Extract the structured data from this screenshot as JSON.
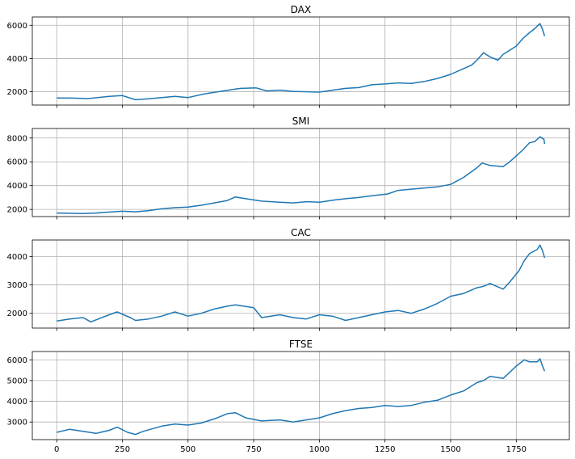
{
  "chart_data": [
    {
      "type": "line",
      "title": "DAX",
      "xlim": [
        -93,
        1952
      ],
      "ylim": [
        1200,
        6500
      ],
      "grid": true,
      "yticks": [
        2000,
        4000,
        6000
      ],
      "xticks": [
        0,
        250,
        500,
        750,
        1000,
        1250,
        1500,
        1750
      ],
      "show_xtick_labels": false,
      "color": "#1f77b4",
      "x": [
        0,
        60,
        120,
        200,
        250,
        300,
        350,
        400,
        450,
        500,
        560,
        620,
        680,
        700,
        760,
        800,
        850,
        900,
        1000,
        1060,
        1100,
        1150,
        1200,
        1250,
        1300,
        1350,
        1400,
        1450,
        1500,
        1550,
        1580,
        1600,
        1625,
        1650,
        1680,
        1700,
        1725,
        1750,
        1775,
        1800,
        1820,
        1840,
        1850,
        1858
      ],
      "y": [
        1630,
        1620,
        1590,
        1720,
        1770,
        1520,
        1580,
        1650,
        1720,
        1650,
        1860,
        2010,
        2160,
        2200,
        2230,
        2050,
        2100,
        2020,
        1980,
        2120,
        2200,
        2250,
        2420,
        2470,
        2530,
        2500,
        2620,
        2800,
        3050,
        3400,
        3600,
        3900,
        4350,
        4100,
        3900,
        4250,
        4500,
        4750,
        5200,
        5550,
        5800,
        6100,
        5750,
        5350
      ]
    },
    {
      "type": "line",
      "title": "SMI",
      "xlim": [
        -93,
        1952
      ],
      "ylim": [
        1400,
        8800
      ],
      "grid": true,
      "yticks": [
        2000,
        4000,
        6000,
        8000
      ],
      "xticks": [
        0,
        250,
        500,
        750,
        1000,
        1250,
        1500,
        1750
      ],
      "show_xtick_labels": false,
      "color": "#1f77b4",
      "x": [
        0,
        100,
        150,
        200,
        250,
        300,
        350,
        400,
        450,
        500,
        550,
        600,
        650,
        680,
        720,
        780,
        850,
        900,
        950,
        1000,
        1060,
        1100,
        1150,
        1200,
        1260,
        1300,
        1350,
        1400,
        1450,
        1500,
        1550,
        1600,
        1620,
        1650,
        1700,
        1725,
        1750,
        1775,
        1800,
        1820,
        1840,
        1855,
        1858
      ],
      "y": [
        1700,
        1650,
        1700,
        1780,
        1850,
        1800,
        1900,
        2050,
        2150,
        2200,
        2350,
        2550,
        2750,
        3050,
        2900,
        2700,
        2600,
        2550,
        2650,
        2600,
        2800,
        2900,
        3000,
        3150,
        3300,
        3600,
        3700,
        3800,
        3900,
        4100,
        4700,
        5500,
        5900,
        5700,
        5600,
        6000,
        6500,
        7000,
        7600,
        7700,
        8100,
        7900,
        7500
      ]
    },
    {
      "type": "line",
      "title": "CAC",
      "xlim": [
        -93,
        1952
      ],
      "ylim": [
        1480,
        4580
      ],
      "grid": true,
      "yticks": [
        2000,
        3000,
        4000
      ],
      "xticks": [
        0,
        250,
        500,
        750,
        1000,
        1250,
        1500,
        1750
      ],
      "show_xtick_labels": false,
      "color": "#1f77b4",
      "x": [
        0,
        50,
        100,
        130,
        200,
        230,
        280,
        300,
        350,
        400,
        450,
        500,
        550,
        600,
        650,
        680,
        750,
        780,
        850,
        900,
        950,
        1000,
        1050,
        1100,
        1150,
        1200,
        1250,
        1300,
        1350,
        1400,
        1450,
        1500,
        1550,
        1600,
        1625,
        1650,
        1700,
        1725,
        1760,
        1780,
        1800,
        1830,
        1840,
        1850,
        1858
      ],
      "y": [
        1730,
        1800,
        1850,
        1700,
        1950,
        2050,
        1850,
        1750,
        1800,
        1900,
        2050,
        1900,
        2000,
        2150,
        2250,
        2300,
        2200,
        1850,
        1950,
        1850,
        1800,
        1950,
        1900,
        1750,
        1850,
        1950,
        2050,
        2100,
        2000,
        2150,
        2350,
        2600,
        2700,
        2900,
        2950,
        3050,
        2850,
        3100,
        3500,
        3850,
        4100,
        4250,
        4400,
        4200,
        3950
      ]
    },
    {
      "type": "line",
      "title": "FTSE",
      "xlim": [
        -93,
        1952
      ],
      "ylim": [
        2150,
        6400
      ],
      "grid": true,
      "yticks": [
        3000,
        4000,
        5000,
        6000
      ],
      "xticks": [
        0,
        250,
        500,
        750,
        1000,
        1250,
        1500,
        1750
      ],
      "xtick_labels": [
        "0",
        "250",
        "500",
        "750",
        "1000",
        "1250",
        "1500",
        "1750"
      ],
      "show_xtick_labels": true,
      "color": "#1f77b4",
      "x": [
        0,
        50,
        100,
        150,
        200,
        230,
        270,
        300,
        330,
        400,
        450,
        500,
        550,
        600,
        650,
        680,
        720,
        780,
        850,
        900,
        950,
        1000,
        1050,
        1100,
        1150,
        1200,
        1250,
        1300,
        1350,
        1400,
        1450,
        1500,
        1550,
        1600,
        1625,
        1650,
        1700,
        1750,
        1780,
        1800,
        1830,
        1840,
        1850,
        1858
      ],
      "y": [
        2500,
        2650,
        2550,
        2450,
        2600,
        2750,
        2500,
        2400,
        2550,
        2800,
        2900,
        2850,
        2950,
        3150,
        3400,
        3450,
        3200,
        3050,
        3100,
        3000,
        3100,
        3200,
        3400,
        3550,
        3650,
        3700,
        3800,
        3750,
        3800,
        3950,
        4050,
        4300,
        4500,
        4900,
        5000,
        5200,
        5100,
        5700,
        6000,
        5900,
        5900,
        6050,
        5700,
        5450
      ]
    }
  ]
}
